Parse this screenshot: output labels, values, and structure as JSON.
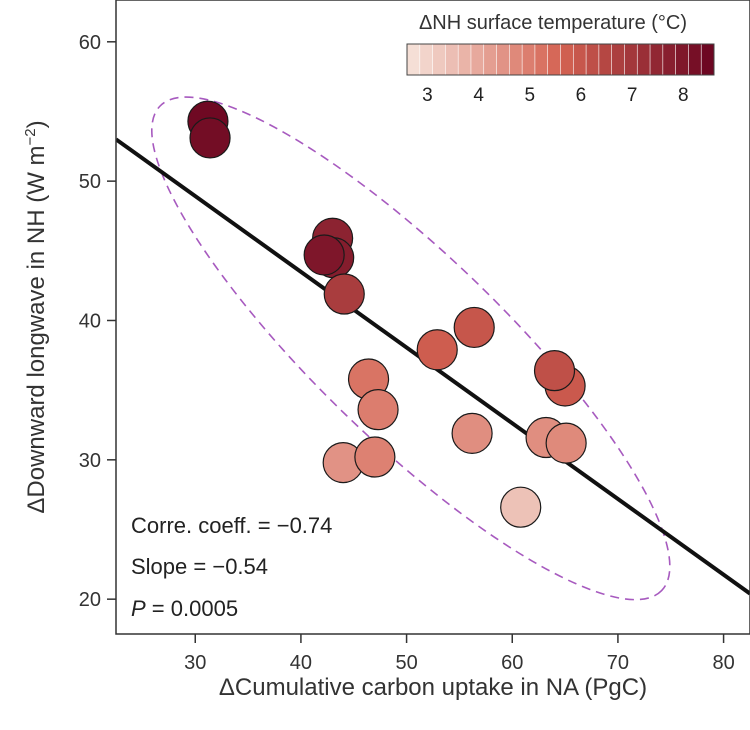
{
  "chart_data": {
    "type": "scatter",
    "xlabel": "ΔCumulative carbon uptake in NA (PgC)",
    "ylabel_main": "ΔDownward longwave in NH (W m",
    "ylabel_exp": "−2",
    "ylabel_close": ")",
    "xlim": [
      22.5,
      82.5
    ],
    "ylim": [
      17.5,
      63
    ],
    "xticks": [
      30,
      40,
      50,
      60,
      70,
      80
    ],
    "yticks": [
      20,
      30,
      40,
      50,
      60
    ],
    "points": [
      {
        "x": 31.2,
        "y": 54.3,
        "t": 8.4
      },
      {
        "x": 31.4,
        "y": 53.1,
        "t": 8.3
      },
      {
        "x": 43.0,
        "y": 45.9,
        "t": 7.6
      },
      {
        "x": 43.1,
        "y": 44.5,
        "t": 7.8
      },
      {
        "x": 42.2,
        "y": 44.7,
        "t": 8.0
      },
      {
        "x": 44.1,
        "y": 41.9,
        "t": 6.8
      },
      {
        "x": 52.9,
        "y": 37.9,
        "t": 5.8
      },
      {
        "x": 56.4,
        "y": 39.5,
        "t": 6.0
      },
      {
        "x": 46.4,
        "y": 35.8,
        "t": 5.2
      },
      {
        "x": 47.3,
        "y": 33.6,
        "t": 5.0
      },
      {
        "x": 44.0,
        "y": 29.8,
        "t": 4.5
      },
      {
        "x": 47.0,
        "y": 30.2,
        "t": 4.9
      },
      {
        "x": 56.2,
        "y": 31.9,
        "t": 4.6
      },
      {
        "x": 60.8,
        "y": 26.6,
        "t": 3.4
      },
      {
        "x": 63.2,
        "y": 31.6,
        "t": 4.6
      },
      {
        "x": 65.1,
        "y": 31.2,
        "t": 4.7
      },
      {
        "x": 65.0,
        "y": 35.3,
        "t": 5.9
      },
      {
        "x": 64.0,
        "y": 36.4,
        "t": 6.2
      }
    ],
    "regression": {
      "x_start": 22.5,
      "y_start": 53.0,
      "x_end": 82.5,
      "y_end": 20.4
    },
    "ellipse": {
      "cx": 50.4,
      "cy": 38.0,
      "rx": 33.0,
      "ry": 8.8,
      "angle_deg": 44
    },
    "stats": {
      "corr": "Corre. coeff. = −0.74",
      "slope": "Slope = −0.54",
      "p_label": "P",
      "p_value": " = 0.0005"
    },
    "legend": {
      "title": "ΔNH surface temperature (°C)",
      "min": 2.6,
      "max": 8.6,
      "ticks": [
        3,
        4,
        5,
        6,
        7,
        8
      ],
      "color_low": "#f6e4dc",
      "color_mid": "#d56352",
      "color_high": "#680320"
    },
    "colors": {
      "line": "#111111",
      "ellipse": "#a75abf",
      "point_stroke": "#1a1a1a"
    }
  }
}
